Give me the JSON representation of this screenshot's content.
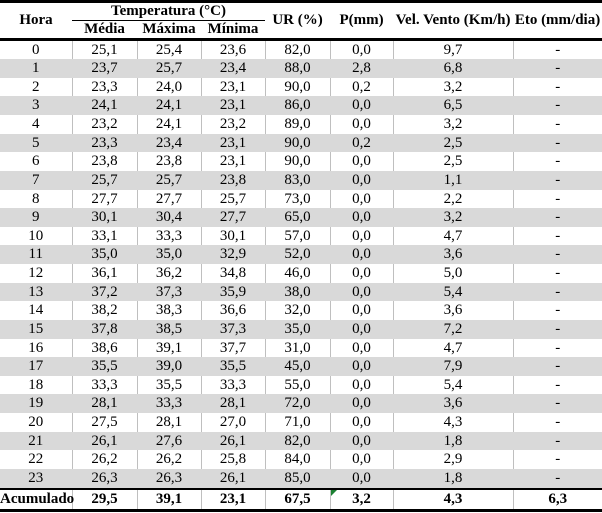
{
  "table": {
    "header": {
      "hora": "Hora",
      "temperatura_group": "Temperatura (°C)",
      "media": "Média",
      "maxima": "Máxima",
      "minima": "Mínima",
      "ur": "UR (%)",
      "p": "P(mm)",
      "vento": "Vel. Vento (Km/h)",
      "eto": "Eto (mm/dia)"
    },
    "rows": [
      [
        "0",
        "25,1",
        "25,4",
        "23,6",
        "82,0",
        "0,0",
        "9,7",
        "-"
      ],
      [
        "1",
        "23,7",
        "25,7",
        "23,4",
        "88,0",
        "2,8",
        "6,8",
        "-"
      ],
      [
        "2",
        "23,3",
        "24,0",
        "23,1",
        "90,0",
        "0,2",
        "3,2",
        "-"
      ],
      [
        "3",
        "24,1",
        "24,1",
        "23,1",
        "86,0",
        "0,0",
        "6,5",
        "-"
      ],
      [
        "4",
        "23,2",
        "24,1",
        "23,2",
        "89,0",
        "0,0",
        "3,2",
        "-"
      ],
      [
        "5",
        "23,3",
        "23,4",
        "23,1",
        "90,0",
        "0,2",
        "2,5",
        "-"
      ],
      [
        "6",
        "23,8",
        "23,8",
        "23,1",
        "90,0",
        "0,0",
        "2,5",
        "-"
      ],
      [
        "7",
        "25,7",
        "25,7",
        "23,8",
        "83,0",
        "0,0",
        "1,1",
        "-"
      ],
      [
        "8",
        "27,7",
        "27,7",
        "25,7",
        "73,0",
        "0,0",
        "2,2",
        "-"
      ],
      [
        "9",
        "30,1",
        "30,4",
        "27,7",
        "65,0",
        "0,0",
        "3,2",
        "-"
      ],
      [
        "10",
        "33,1",
        "33,3",
        "30,1",
        "57,0",
        "0,0",
        "4,7",
        "-"
      ],
      [
        "11",
        "35,0",
        "35,0",
        "32,9",
        "52,0",
        "0,0",
        "3,6",
        "-"
      ],
      [
        "12",
        "36,1",
        "36,2",
        "34,8",
        "46,0",
        "0,0",
        "5,0",
        "-"
      ],
      [
        "13",
        "37,2",
        "37,3",
        "35,9",
        "38,0",
        "0,0",
        "5,4",
        "-"
      ],
      [
        "14",
        "38,2",
        "38,3",
        "36,6",
        "32,0",
        "0,0",
        "3,6",
        "-"
      ],
      [
        "15",
        "37,8",
        "38,5",
        "37,3",
        "35,0",
        "0,0",
        "7,2",
        "-"
      ],
      [
        "16",
        "38,6",
        "39,1",
        "37,7",
        "31,0",
        "0,0",
        "4,7",
        "-"
      ],
      [
        "17",
        "35,5",
        "39,0",
        "35,5",
        "45,0",
        "0,0",
        "7,9",
        "-"
      ],
      [
        "18",
        "33,3",
        "35,5",
        "33,3",
        "55,0",
        "0,0",
        "5,4",
        "-"
      ],
      [
        "19",
        "28,1",
        "33,3",
        "28,1",
        "72,0",
        "0,0",
        "3,6",
        "-"
      ],
      [
        "20",
        "27,5",
        "28,1",
        "27,0",
        "71,0",
        "0,0",
        "4,3",
        "-"
      ],
      [
        "21",
        "26,1",
        "27,6",
        "26,1",
        "82,0",
        "0,0",
        "1,8",
        "-"
      ],
      [
        "22",
        "26,2",
        "26,2",
        "25,8",
        "84,0",
        "0,0",
        "2,9",
        "-"
      ],
      [
        "23",
        "26,3",
        "26,3",
        "26,1",
        "85,0",
        "0,0",
        "1,8",
        "-"
      ]
    ],
    "footer": {
      "label": "Acumulado",
      "values": [
        "29,5",
        "39,1",
        "23,1",
        "67,5",
        "3,2",
        "4,3",
        "6,3"
      ]
    },
    "colors": {
      "stripe": "#d9d9d9",
      "gridline": "#bfbfbf",
      "rule": "#000000",
      "flag_green": "#1c8032"
    }
  }
}
